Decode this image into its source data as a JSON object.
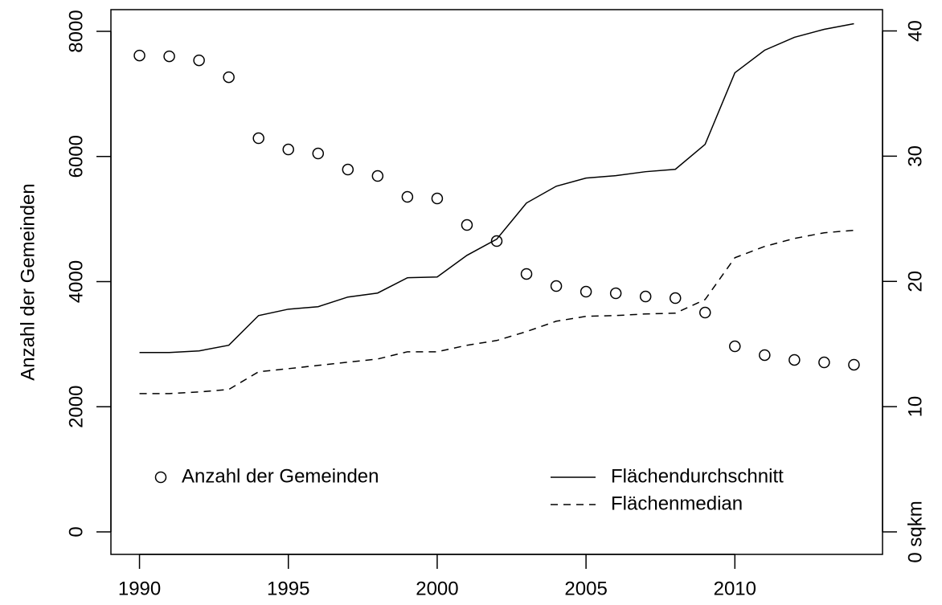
{
  "chart_data": {
    "type": "line",
    "ylabel": "Anzahl der Gemeinden",
    "x": [
      1990,
      1991,
      1992,
      1993,
      1994,
      1995,
      1996,
      1997,
      1998,
      1999,
      2000,
      2001,
      2002,
      2003,
      2004,
      2005,
      2006,
      2007,
      2008,
      2009,
      2010,
      2011,
      2012,
      2013,
      2014
    ],
    "xlim": [
      1989.04,
      2014.96
    ],
    "xticks": [
      1990,
      1995,
      2000,
      2005,
      2010
    ],
    "ylim": [
      -360,
      8347
    ],
    "yticks": [
      0,
      2000,
      4000,
      6000,
      8000
    ],
    "y2lim": [
      -1.8,
      41.7
    ],
    "y2ticks": [
      {
        "value": 0,
        "label": "0 sqkm"
      },
      10,
      20,
      30,
      40
    ],
    "legend": "bottom",
    "series": [
      {
        "name": "Anzahl der Gemeinden",
        "color": "#000000",
        "marker": "circle",
        "values": [
          7614,
          7601,
          7537,
          7267,
          6292,
          6112,
          6048,
          5791,
          5688,
          5354,
          5329,
          4905,
          4648,
          4122,
          3929,
          3839,
          3813,
          3762,
          3736,
          3505,
          2966,
          2825,
          2748,
          2709,
          2671
        ]
      },
      {
        "name": "Flächendurchschnitt",
        "color": "#000000",
        "axis": "y2",
        "dash": "solid",
        "values": [
          14.32,
          14.32,
          14.45,
          14.9,
          17.27,
          17.78,
          17.98,
          18.75,
          19.07,
          20.29,
          20.35,
          22.08,
          23.37,
          26.26,
          27.6,
          28.25,
          28.44,
          28.76,
          28.95,
          30.94,
          36.66,
          38.46,
          39.49,
          40.13,
          40.58
        ]
      },
      {
        "name": "Flächenmedian",
        "color": "#000000",
        "axis": "y2",
        "dash": "dashed",
        "values": [
          11.04,
          11.04,
          11.17,
          11.37,
          12.78,
          13.03,
          13.29,
          13.55,
          13.8,
          14.38,
          14.38,
          14.9,
          15.28,
          15.99,
          16.82,
          17.21,
          17.27,
          17.4,
          17.46,
          18.55,
          21.89,
          22.79,
          23.43,
          23.88,
          24.08
        ]
      }
    ]
  }
}
